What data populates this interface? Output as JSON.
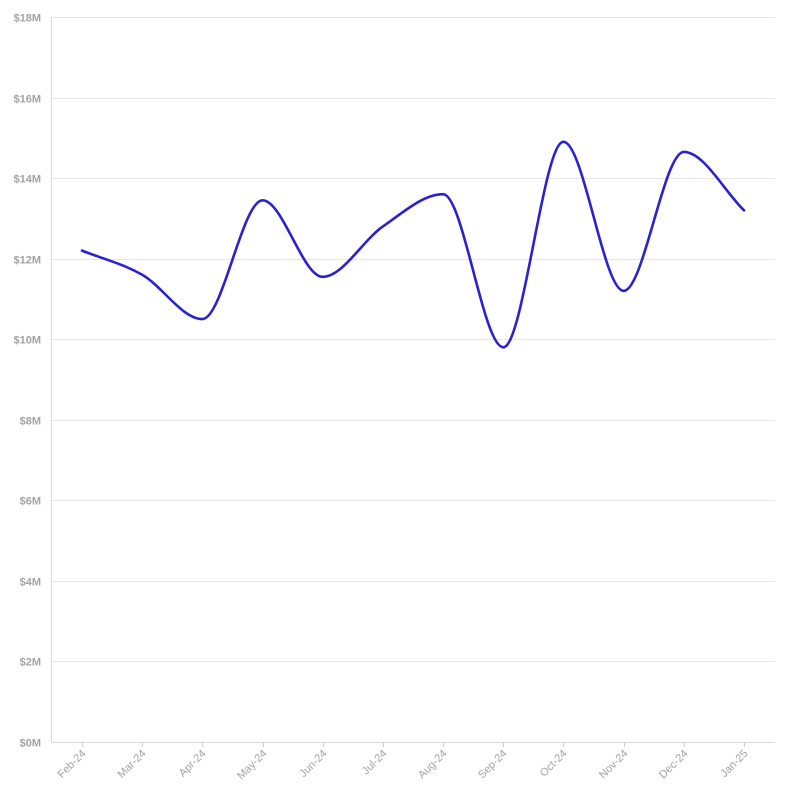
{
  "chart_data": {
    "type": "line",
    "title": "",
    "xlabel": "",
    "ylabel": "",
    "categories": [
      "Feb-24",
      "Mar-24",
      "Apr-24",
      "May-24",
      "Jun-24",
      "Jul-24",
      "Aug-24",
      "Sep-24",
      "Oct-24",
      "Nov-24",
      "Dec-24",
      "Jan-25"
    ],
    "series": [
      {
        "values": [
          12.2,
          11.6,
          10.5,
          13.45,
          11.55,
          12.8,
          13.6,
          9.8,
          14.9,
          11.2,
          14.65,
          13.2
        ],
        "color": "#2a22d0"
      }
    ],
    "ylim": [
      0,
      18
    ],
    "y_ticks": [
      {
        "value": 0,
        "label": "$0M"
      },
      {
        "value": 2,
        "label": "$2M"
      },
      {
        "value": 4,
        "label": "$4M"
      },
      {
        "value": 6,
        "label": "$6M"
      },
      {
        "value": 8,
        "label": "$8M"
      },
      {
        "value": 10,
        "label": "$10M"
      },
      {
        "value": 12,
        "label": "$12M"
      },
      {
        "value": 14,
        "label": "$14M"
      },
      {
        "value": 16,
        "label": "$16M"
      },
      {
        "value": 18,
        "label": "$18M"
      }
    ],
    "grid": true,
    "legend": "none"
  }
}
